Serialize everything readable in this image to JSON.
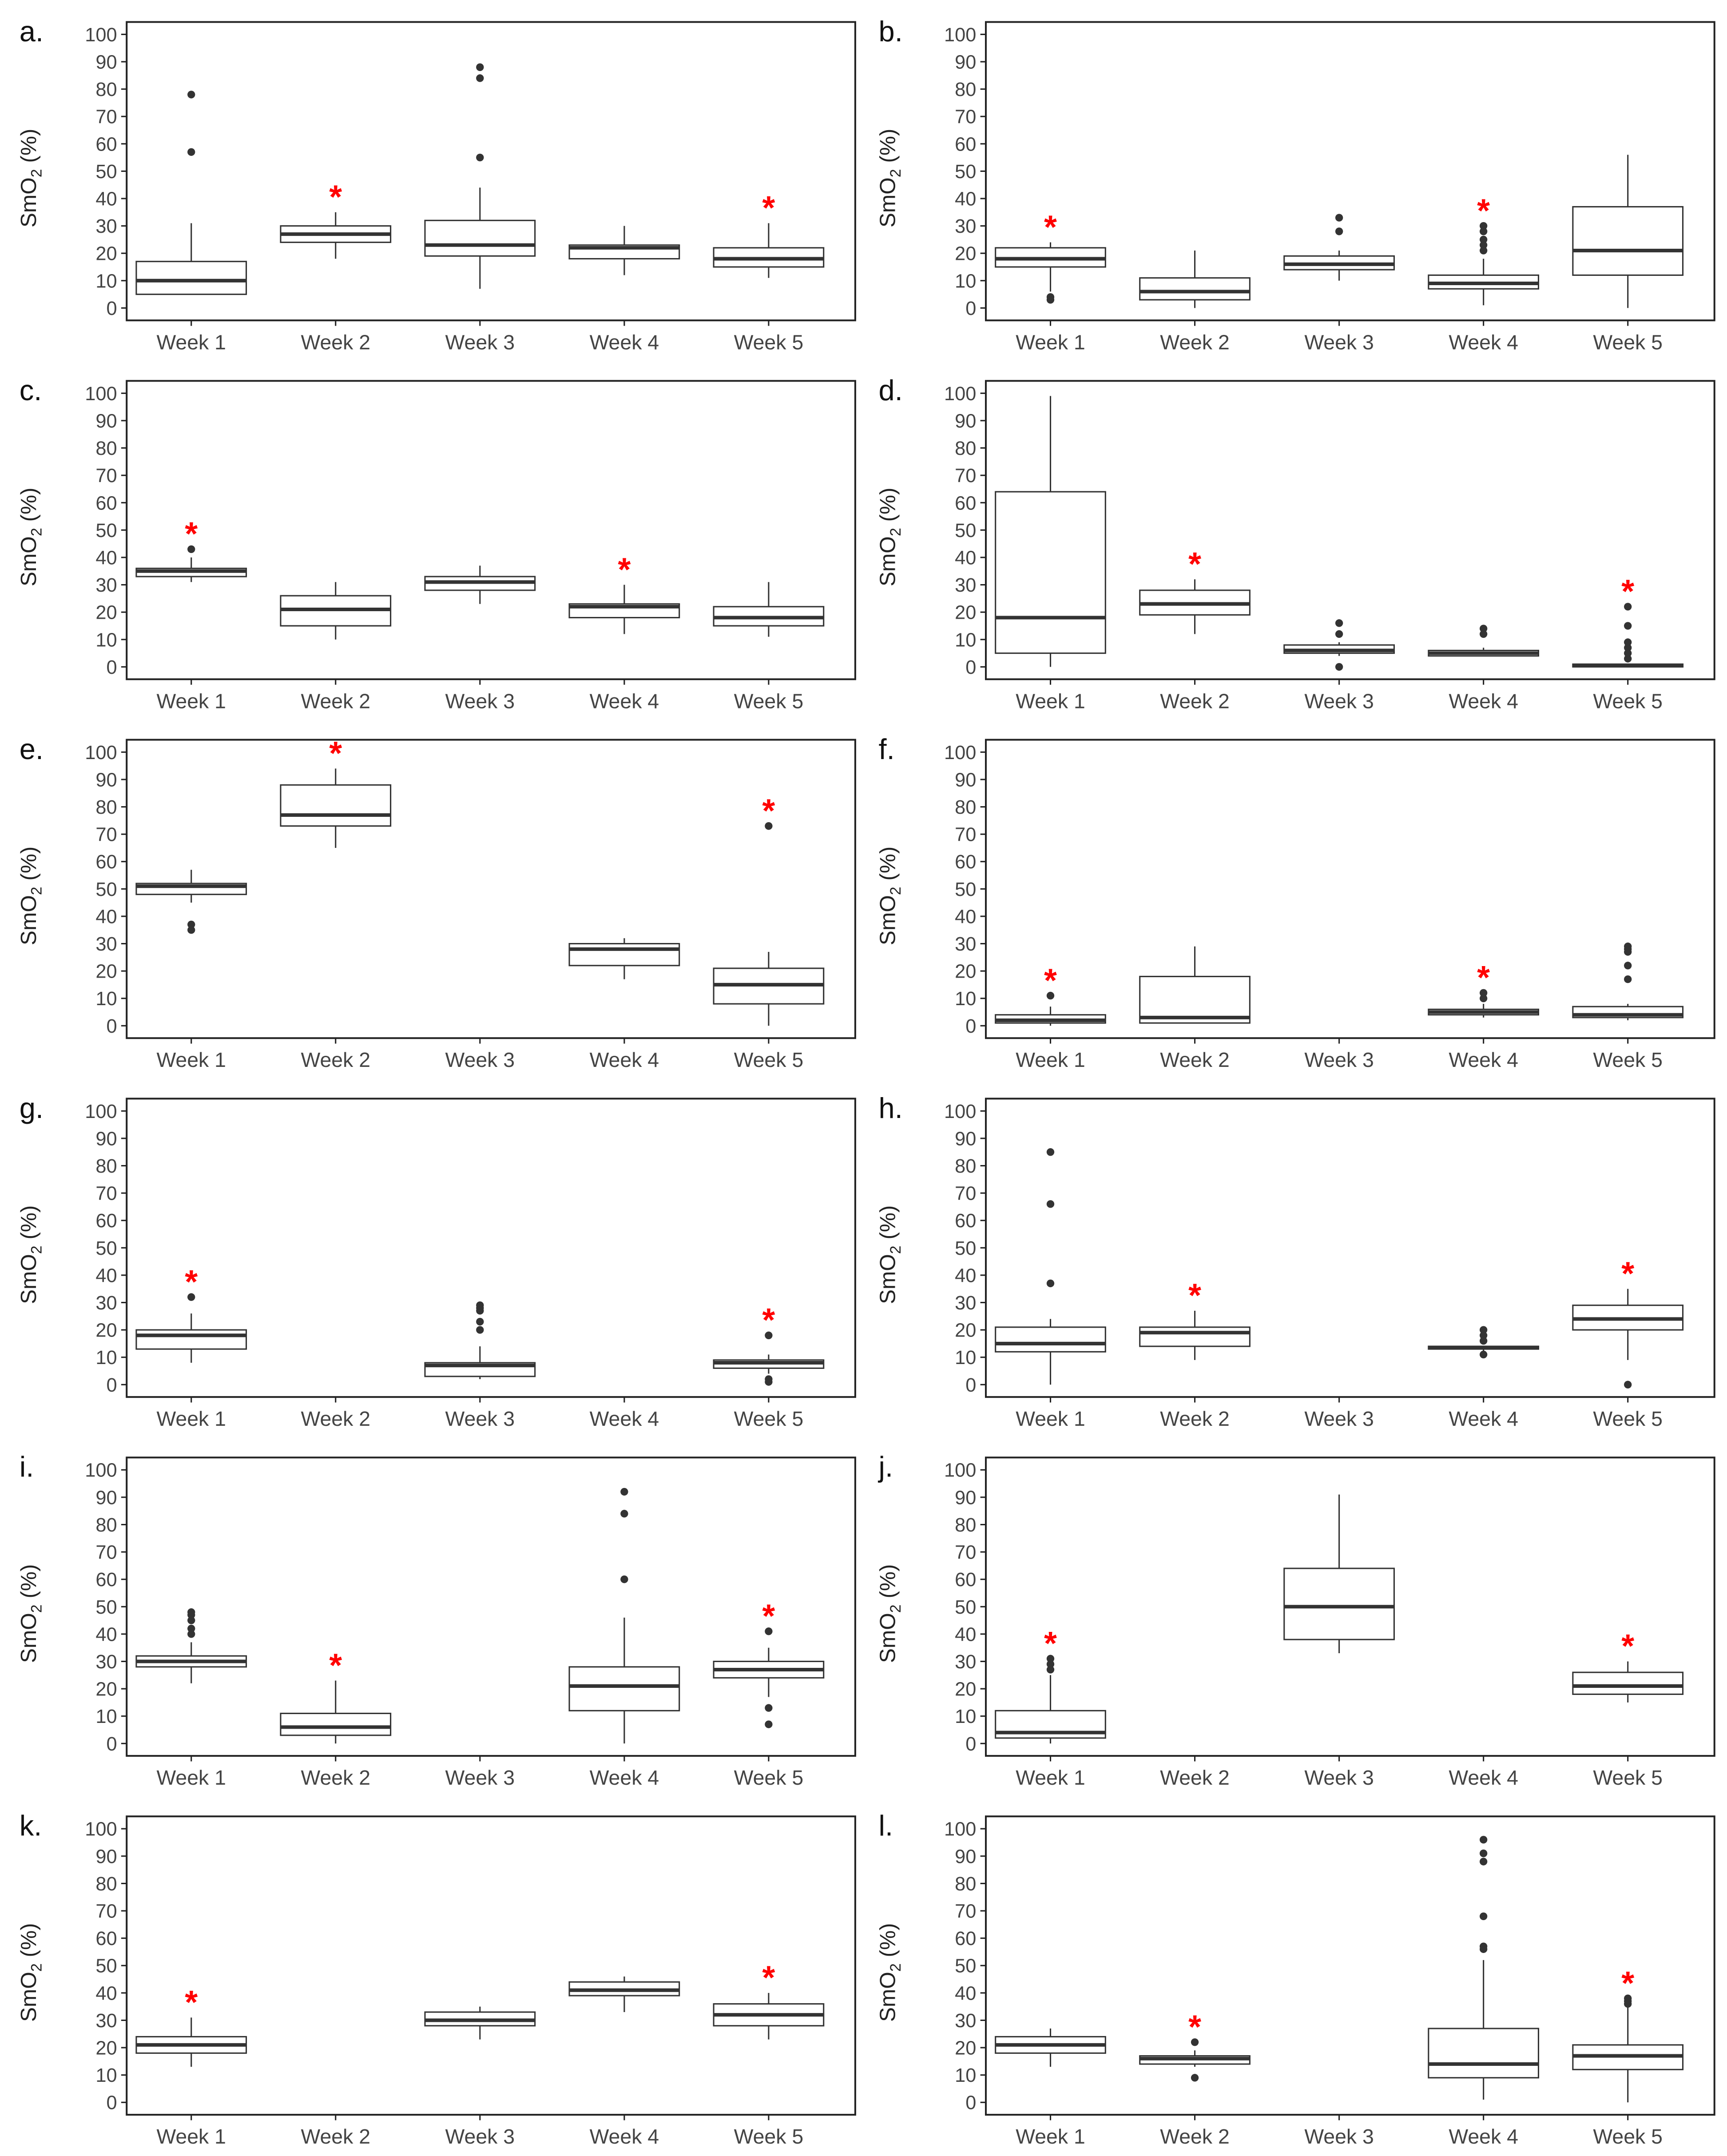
{
  "chart_data": {
    "type": "boxplot",
    "ylabel": {
      "main": "SmO",
      "sub": "2",
      "unit": " (%)"
    },
    "ylim": [
      0,
      100
    ],
    "yticks": [
      "0",
      "10",
      "20",
      "30",
      "40",
      "50",
      "60",
      "70",
      "80",
      "90",
      "100"
    ],
    "categories": [
      "Week 1",
      "Week 2",
      "Week 3",
      "Week 4",
      "Week 5"
    ],
    "colors": {
      "box": "#333333",
      "star": "#ff0000",
      "outlier": "#333333"
    },
    "star_symbol": "*",
    "panels": [
      {
        "label": "a.",
        "weeks": [
          {
            "lo": 5,
            "q1": 5,
            "med": 10,
            "q3": 17,
            "hi": 31,
            "out": [
              57,
              78
            ],
            "star": false
          },
          {
            "lo": 18,
            "q1": 24,
            "med": 27,
            "q3": 30,
            "hi": 35,
            "out": [],
            "star": true
          },
          {
            "lo": 7,
            "q1": 19,
            "med": 23,
            "q3": 32,
            "hi": 44,
            "out": [
              55,
              84,
              88
            ],
            "star": false
          },
          {
            "lo": 12,
            "q1": 18,
            "med": 22,
            "q3": 23,
            "hi": 30,
            "out": [],
            "star": false
          },
          {
            "lo": 11,
            "q1": 15,
            "med": 18,
            "q3": 22,
            "hi": 31,
            "out": [],
            "star": true
          }
        ]
      },
      {
        "label": "b.",
        "weeks": [
          {
            "lo": 6,
            "q1": 15,
            "med": 18,
            "q3": 22,
            "hi": 24,
            "out": [
              3,
              4
            ],
            "star": true
          },
          {
            "lo": 0,
            "q1": 3,
            "med": 6,
            "q3": 11,
            "hi": 21,
            "out": [],
            "star": false
          },
          {
            "lo": 10,
            "q1": 14,
            "med": 16,
            "q3": 19,
            "hi": 21,
            "out": [
              28,
              33
            ],
            "star": false
          },
          {
            "lo": 1,
            "q1": 7,
            "med": 9,
            "q3": 12,
            "hi": 18,
            "out": [
              21,
              23,
              25,
              28,
              30
            ],
            "star": true
          },
          {
            "lo": 0,
            "q1": 12,
            "med": 21,
            "q3": 37,
            "hi": 56,
            "out": [],
            "star": false
          }
        ]
      },
      {
        "label": "c.",
        "weeks": [
          {
            "lo": 31,
            "q1": 33,
            "med": 35,
            "q3": 36,
            "hi": 40,
            "out": [
              43
            ],
            "star": true
          },
          {
            "lo": 10,
            "q1": 15,
            "med": 21,
            "q3": 26,
            "hi": 31,
            "out": [],
            "star": false
          },
          {
            "lo": 23,
            "q1": 28,
            "med": 31,
            "q3": 33,
            "hi": 37,
            "out": [],
            "star": false
          },
          {
            "lo": 12,
            "q1": 18,
            "med": 22,
            "q3": 23,
            "hi": 30,
            "out": [],
            "star": true
          },
          {
            "lo": 11,
            "q1": 15,
            "med": 18,
            "q3": 22,
            "hi": 31,
            "out": [],
            "star": false
          }
        ]
      },
      {
        "label": "d.",
        "weeks": [
          {
            "lo": 0,
            "q1": 5,
            "med": 18,
            "q3": 64,
            "hi": 99,
            "out": [],
            "star": false
          },
          {
            "lo": 12,
            "q1": 19,
            "med": 23,
            "q3": 28,
            "hi": 32,
            "out": [],
            "star": true
          },
          {
            "lo": 4,
            "q1": 5,
            "med": 6,
            "q3": 8,
            "hi": 9,
            "out": [
              0,
              12,
              16
            ],
            "star": false
          },
          {
            "lo": 4,
            "q1": 4,
            "med": 5,
            "q3": 6,
            "hi": 7,
            "out": [
              12,
              14
            ],
            "star": false
          },
          {
            "lo": 0,
            "q1": 0,
            "med": 0.5,
            "q3": 1,
            "hi": 1,
            "out": [
              3,
              5,
              7,
              9,
              15,
              22
            ],
            "star": true
          }
        ]
      },
      {
        "label": "e.",
        "weeks": [
          {
            "lo": 45,
            "q1": 48,
            "med": 51,
            "q3": 52,
            "hi": 57,
            "out": [
              35,
              37
            ],
            "star": false
          },
          {
            "lo": 65,
            "q1": 73,
            "med": 77,
            "q3": 88,
            "hi": 94,
            "out": [],
            "star": true
          },
          null,
          {
            "lo": 17,
            "q1": 22,
            "med": 28,
            "q3": 30,
            "hi": 32,
            "out": [],
            "star": false
          },
          {
            "lo": 0,
            "q1": 8,
            "med": 15,
            "q3": 21,
            "hi": 27,
            "out": [
              73
            ],
            "star": true
          }
        ]
      },
      {
        "label": "f.",
        "weeks": [
          {
            "lo": 0,
            "q1": 1,
            "med": 2,
            "q3": 4,
            "hi": 7,
            "out": [
              11
            ],
            "star": true
          },
          {
            "lo": 1,
            "q1": 1,
            "med": 3,
            "q3": 18,
            "hi": 29,
            "out": [],
            "star": false
          },
          null,
          {
            "lo": 3,
            "q1": 4,
            "med": 5,
            "q3": 6,
            "hi": 8,
            "out": [
              10,
              12
            ],
            "star": true
          },
          {
            "lo": 2,
            "q1": 3,
            "med": 4,
            "q3": 7,
            "hi": 8,
            "out": [
              17,
              22,
              27,
              28,
              29
            ],
            "star": false
          }
        ]
      },
      {
        "label": "g.",
        "weeks": [
          {
            "lo": 8,
            "q1": 13,
            "med": 18,
            "q3": 20,
            "hi": 26,
            "out": [
              32
            ],
            "star": true
          },
          null,
          {
            "lo": 2,
            "q1": 3,
            "med": 7,
            "q3": 8,
            "hi": 14,
            "out": [
              20,
              23,
              27,
              28,
              29
            ],
            "star": false
          },
          null,
          {
            "lo": 4,
            "q1": 6,
            "med": 8,
            "q3": 9,
            "hi": 11,
            "out": [
              1,
              2,
              18
            ],
            "star": true
          }
        ]
      },
      {
        "label": "h.",
        "weeks": [
          {
            "lo": 0,
            "q1": 12,
            "med": 15,
            "q3": 21,
            "hi": 24,
            "out": [
              37,
              66,
              85
            ],
            "star": false
          },
          {
            "lo": 9,
            "q1": 14,
            "med": 19,
            "q3": 21,
            "hi": 27,
            "out": [],
            "star": true
          },
          null,
          {
            "lo": 12,
            "q1": 13,
            "med": 13.5,
            "q3": 14,
            "hi": 14,
            "out": [
              11,
              16,
              18,
              20
            ],
            "star": false
          },
          {
            "lo": 9,
            "q1": 20,
            "med": 24,
            "q3": 29,
            "hi": 35,
            "out": [
              0
            ],
            "star": true
          }
        ]
      },
      {
        "label": "i.",
        "weeks": [
          {
            "lo": 22,
            "q1": 28,
            "med": 30,
            "q3": 32,
            "hi": 37,
            "out": [
              40,
              42,
              45,
              47,
              48
            ],
            "star": false
          },
          {
            "lo": 0,
            "q1": 3,
            "med": 6,
            "q3": 11,
            "hi": 23,
            "out": [],
            "star": true
          },
          null,
          {
            "lo": 0,
            "q1": 12,
            "med": 21,
            "q3": 28,
            "hi": 46,
            "out": [
              60,
              84,
              92
            ],
            "star": false
          },
          {
            "lo": 17,
            "q1": 24,
            "med": 27,
            "q3": 30,
            "hi": 35,
            "out": [
              7,
              13,
              41
            ],
            "star": true
          }
        ]
      },
      {
        "label": "j.",
        "weeks": [
          {
            "lo": 0,
            "q1": 2,
            "med": 4,
            "q3": 12,
            "hi": 25,
            "out": [
              27,
              29,
              31
            ],
            "star": true
          },
          null,
          {
            "lo": 33,
            "q1": 38,
            "med": 50,
            "q3": 64,
            "hi": 91,
            "out": [],
            "star": false
          },
          null,
          {
            "lo": 15,
            "q1": 18,
            "med": 21,
            "q3": 26,
            "hi": 30,
            "out": [],
            "star": true
          }
        ]
      },
      {
        "label": "k.",
        "weeks": [
          {
            "lo": 13,
            "q1": 18,
            "med": 21,
            "q3": 24,
            "hi": 31,
            "out": [],
            "star": true
          },
          null,
          {
            "lo": 23,
            "q1": 28,
            "med": 30,
            "q3": 33,
            "hi": 35,
            "out": [],
            "star": false
          },
          {
            "lo": 33,
            "q1": 39,
            "med": 41,
            "q3": 44,
            "hi": 46,
            "out": [],
            "star": false
          },
          {
            "lo": 23,
            "q1": 28,
            "med": 32,
            "q3": 36,
            "hi": 40,
            "out": [],
            "star": true
          }
        ]
      },
      {
        "label": "l.",
        "weeks": [
          {
            "lo": 13,
            "q1": 18,
            "med": 21,
            "q3": 24,
            "hi": 27,
            "out": [],
            "star": false
          },
          {
            "lo": 13,
            "q1": 14,
            "med": 16,
            "q3": 17,
            "hi": 19,
            "out": [
              9,
              22
            ],
            "star": true
          },
          null,
          {
            "lo": 1,
            "q1": 9,
            "med": 14,
            "q3": 27,
            "hi": 52,
            "out": [
              56,
              57,
              68,
              88,
              91,
              96
            ],
            "star": false
          },
          {
            "lo": 0,
            "q1": 12,
            "med": 17,
            "q3": 21,
            "hi": 35,
            "out": [
              36,
              37,
              38
            ],
            "star": true
          }
        ]
      }
    ]
  }
}
